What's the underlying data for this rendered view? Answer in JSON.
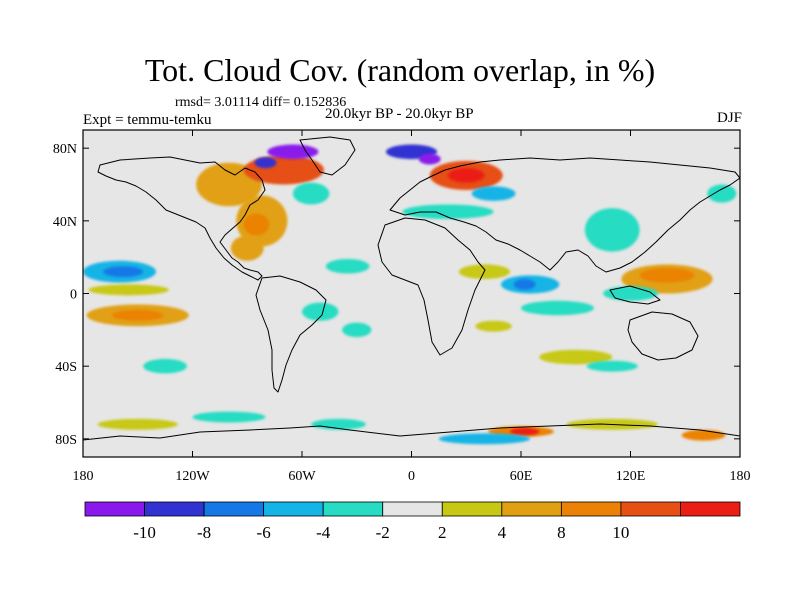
{
  "title": "Tot. Cloud Cov. (random overlap, in %)",
  "stats_line": "rmsd= 3.01114 diff= 0.152836",
  "experiment": "Expt = temmu-temku",
  "period": "20.0kyr BP - 20.0kyr BP",
  "season": "DJF",
  "map": {
    "lon_range": [
      -180,
      180
    ],
    "lat_range": [
      -90,
      90
    ],
    "ocean_color": "#e6e6e6",
    "x_ticks": [
      {
        "value": -180,
        "label": "180"
      },
      {
        "value": -120,
        "label": "120W"
      },
      {
        "value": -60,
        "label": "60W"
      },
      {
        "value": 0,
        "label": "0"
      },
      {
        "value": 60,
        "label": "60E"
      },
      {
        "value": 120,
        "label": "120E"
      },
      {
        "value": 180,
        "label": "180"
      }
    ],
    "y_ticks": [
      {
        "value": 80,
        "label": "80N"
      },
      {
        "value": 40,
        "label": "40N"
      },
      {
        "value": 0,
        "label": "0"
      },
      {
        "value": -40,
        "label": "40S"
      },
      {
        "value": -80,
        "label": "80S"
      }
    ]
  },
  "colorbar": {
    "colors": [
      "#8a1aeb",
      "#3232d2",
      "#1478e6",
      "#14b4e6",
      "#28dcc3",
      "#e6e6e6",
      "#c8c814",
      "#e1a014",
      "#eb8205",
      "#e65014",
      "#eb1e14"
    ],
    "labels": [
      {
        "boundary": 1,
        "label": "-10"
      },
      {
        "boundary": 2,
        "label": "-8"
      },
      {
        "boundary": 3,
        "label": "-6"
      },
      {
        "boundary": 4,
        "label": "-4"
      },
      {
        "boundary": 5,
        "label": "-2"
      },
      {
        "boundary": 6,
        "label": "2"
      },
      {
        "boundary": 7,
        "label": "4"
      },
      {
        "boundary": 8,
        "label": "8"
      },
      {
        "boundary": 9,
        "label": "10"
      }
    ]
  },
  "anomalies": [
    {
      "lon": -160,
      "lat": 12,
      "rx": 20,
      "ry": 6,
      "color": "#14b4e6"
    },
    {
      "lon": -158,
      "lat": 12,
      "rx": 11,
      "ry": 3,
      "color": "#1478e6"
    },
    {
      "lon": -150,
      "lat": -12,
      "rx": 28,
      "ry": 6,
      "color": "#e1a014"
    },
    {
      "lon": -150,
      "lat": -12,
      "rx": 14,
      "ry": 3,
      "color": "#eb8205"
    },
    {
      "lon": -155,
      "lat": 2,
      "rx": 22,
      "ry": 3,
      "color": "#c8c814"
    },
    {
      "lon": -135,
      "lat": -40,
      "rx": 12,
      "ry": 4,
      "color": "#28dcc3"
    },
    {
      "lon": -100,
      "lat": 60,
      "rx": 18,
      "ry": 12,
      "color": "#e1a014"
    },
    {
      "lon": -82,
      "lat": 40,
      "rx": 14,
      "ry": 14,
      "color": "#e1a014"
    },
    {
      "lon": -85,
      "lat": 38,
      "rx": 7,
      "ry": 6,
      "color": "#eb8205"
    },
    {
      "lon": -90,
      "lat": 25,
      "rx": 9,
      "ry": 7,
      "color": "#e1a014"
    },
    {
      "lon": -70,
      "lat": 68,
      "rx": 22,
      "ry": 8,
      "color": "#e65014"
    },
    {
      "lon": -65,
      "lat": 78,
      "rx": 14,
      "ry": 4,
      "color": "#8a1aeb"
    },
    {
      "lon": -80,
      "lat": 72,
      "rx": 6,
      "ry": 3,
      "color": "#3232d2"
    },
    {
      "lon": -55,
      "lat": 55,
      "rx": 10,
      "ry": 6,
      "color": "#28dcc3"
    },
    {
      "lon": -35,
      "lat": 15,
      "rx": 12,
      "ry": 4,
      "color": "#28dcc3"
    },
    {
      "lon": -50,
      "lat": -10,
      "rx": 10,
      "ry": 5,
      "color": "#28dcc3"
    },
    {
      "lon": -30,
      "lat": -20,
      "rx": 8,
      "ry": 4,
      "color": "#28dcc3"
    },
    {
      "lon": 30,
      "lat": 65,
      "rx": 20,
      "ry": 8,
      "color": "#e65014"
    },
    {
      "lon": 30,
      "lat": 65,
      "rx": 10,
      "ry": 4,
      "color": "#eb1e14"
    },
    {
      "lon": 0,
      "lat": 78,
      "rx": 14,
      "ry": 4,
      "color": "#3232d2"
    },
    {
      "lon": 10,
      "lat": 74,
      "rx": 6,
      "ry": 3,
      "color": "#8a1aeb"
    },
    {
      "lon": 20,
      "lat": 45,
      "rx": 25,
      "ry": 4,
      "color": "#28dcc3"
    },
    {
      "lon": 45,
      "lat": 55,
      "rx": 12,
      "ry": 4,
      "color": "#14b4e6"
    },
    {
      "lon": 40,
      "lat": 12,
      "rx": 14,
      "ry": 4,
      "color": "#c8c814"
    },
    {
      "lon": 45,
      "lat": -18,
      "rx": 10,
      "ry": 3,
      "color": "#c8c814"
    },
    {
      "lon": 65,
      "lat": 5,
      "rx": 16,
      "ry": 5,
      "color": "#14b4e6"
    },
    {
      "lon": 62,
      "lat": 5,
      "rx": 6,
      "ry": 3,
      "color": "#1478e6"
    },
    {
      "lon": 80,
      "lat": -8,
      "rx": 20,
      "ry": 4,
      "color": "#28dcc3"
    },
    {
      "lon": 90,
      "lat": -35,
      "rx": 20,
      "ry": 4,
      "color": "#c8c814"
    },
    {
      "lon": 110,
      "lat": 35,
      "rx": 15,
      "ry": 12,
      "color": "#28dcc3"
    },
    {
      "lon": 140,
      "lat": 8,
      "rx": 25,
      "ry": 8,
      "color": "#e1a014"
    },
    {
      "lon": 140,
      "lat": 10,
      "rx": 15,
      "ry": 4,
      "color": "#eb8205"
    },
    {
      "lon": 120,
      "lat": 0,
      "rx": 15,
      "ry": 4,
      "color": "#28dcc3"
    },
    {
      "lon": 170,
      "lat": 55,
      "rx": 8,
      "ry": 5,
      "color": "#28dcc3"
    },
    {
      "lon": 110,
      "lat": -40,
      "rx": 14,
      "ry": 3,
      "color": "#28dcc3"
    },
    {
      "lon": -150,
      "lat": -72,
      "rx": 22,
      "ry": 3,
      "color": "#c8c814"
    },
    {
      "lon": -100,
      "lat": -68,
      "rx": 20,
      "ry": 3,
      "color": "#28dcc3"
    },
    {
      "lon": -40,
      "lat": -72,
      "rx": 15,
      "ry": 3,
      "color": "#28dcc3"
    },
    {
      "lon": 60,
      "lat": -76,
      "rx": 18,
      "ry": 3,
      "color": "#eb8205"
    },
    {
      "lon": 62,
      "lat": -76,
      "rx": 8,
      "ry": 2,
      "color": "#eb1e14"
    },
    {
      "lon": 110,
      "lat": -72,
      "rx": 25,
      "ry": 3,
      "color": "#c8c814"
    },
    {
      "lon": 160,
      "lat": -78,
      "rx": 12,
      "ry": 3,
      "color": "#eb8205"
    },
    {
      "lon": 40,
      "lat": -80,
      "rx": 25,
      "ry": 3,
      "color": "#14b4e6"
    }
  ]
}
